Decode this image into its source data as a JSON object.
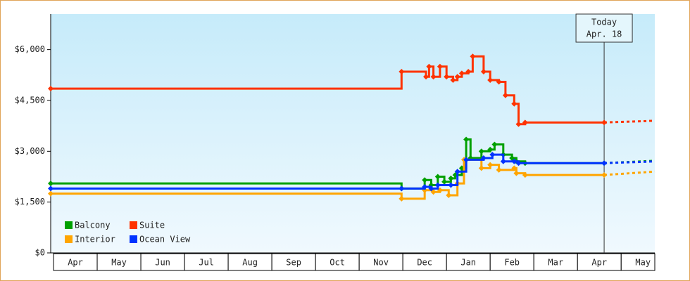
{
  "chart_data": {
    "type": "step-line",
    "ylim": [
      0,
      7050
    ],
    "yticks": [
      {
        "value": 0,
        "label": "$0"
      },
      {
        "value": 1500,
        "label": "$1,500"
      },
      {
        "value": 3000,
        "label": "$3,000"
      },
      {
        "value": 4500,
        "label": "$4,500"
      },
      {
        "value": 6000,
        "label": "$6,000"
      }
    ],
    "xlim": [
      -0.065,
      13.77
    ],
    "xticks": [
      {
        "value": 0.5,
        "label": "Apr"
      },
      {
        "value": 1.5,
        "label": "May"
      },
      {
        "value": 2.5,
        "label": "Jun"
      },
      {
        "value": 3.5,
        "label": "Jul"
      },
      {
        "value": 4.5,
        "label": "Aug"
      },
      {
        "value": 5.5,
        "label": "Sep"
      },
      {
        "value": 6.5,
        "label": "Oct"
      },
      {
        "value": 7.5,
        "label": "Nov"
      },
      {
        "value": 8.5,
        "label": "Dec"
      },
      {
        "value": 9.5,
        "label": "Jan"
      },
      {
        "value": 10.5,
        "label": "Feb"
      },
      {
        "value": 11.5,
        "label": "Mar"
      },
      {
        "value": 12.5,
        "label": "Apr"
      },
      {
        "value": 13.5,
        "label": "May"
      }
    ],
    "today": {
      "x": 12.61,
      "label": [
        "Today",
        "Apr. 18"
      ]
    },
    "forecast_x": [
      12.61,
      13.77
    ],
    "legend": "bottom-left",
    "series": [
      {
        "name": "Balcony",
        "color": "#00a000",
        "x": [
          -0.065,
          7.97,
          8.5,
          8.65,
          8.8,
          8.95,
          9.1,
          9.2,
          9.35,
          9.45,
          9.55,
          9.8,
          10.0,
          10.1,
          10.3,
          10.5,
          10.6,
          10.8,
          12.61
        ],
        "values": [
          2050,
          1900,
          2150,
          2000,
          2250,
          2100,
          2200,
          2300,
          2500,
          3350,
          2800,
          3000,
          3050,
          3200,
          2900,
          2800,
          2700,
          2650,
          2650
        ],
        "forecast": [
          2650,
          2720
        ]
      },
      {
        "name": "Suite",
        "color": "#ff3300",
        "x": [
          -0.065,
          7.97,
          8.53,
          8.6,
          8.7,
          8.85,
          9.0,
          9.15,
          9.25,
          9.35,
          9.5,
          9.6,
          9.85,
          10.0,
          10.2,
          10.35,
          10.55,
          10.65,
          10.8,
          12.61
        ],
        "values": [
          4850,
          5350,
          5200,
          5500,
          5200,
          5500,
          5200,
          5100,
          5200,
          5300,
          5350,
          5800,
          5350,
          5100,
          5050,
          4650,
          4400,
          3800,
          3850,
          3850
        ],
        "forecast": [
          3850,
          3900
        ]
      },
      {
        "name": "Interior",
        "color": "#ffa500",
        "x": [
          -0.065,
          7.97,
          8.5,
          8.7,
          8.85,
          9.05,
          9.25,
          9.4,
          9.8,
          10.0,
          10.2,
          10.55,
          10.6,
          10.8,
          12.61
        ],
        "values": [
          1750,
          1600,
          1850,
          1800,
          1850,
          1700,
          2050,
          2750,
          2500,
          2600,
          2450,
          2500,
          2350,
          2300,
          2300
        ],
        "forecast": [
          2300,
          2400
        ]
      },
      {
        "name": "Ocean View",
        "color": "#0033ff",
        "x": [
          -0.065,
          7.97,
          8.5,
          8.65,
          8.8,
          9.1,
          9.25,
          9.45,
          9.85,
          10.05,
          10.3,
          10.55,
          10.65,
          12.61
        ],
        "values": [
          1900,
          1900,
          1950,
          1900,
          2000,
          2000,
          2400,
          2750,
          2800,
          2900,
          2700,
          2700,
          2650,
          2650
        ],
        "forecast": [
          2650,
          2700
        ]
      }
    ]
  }
}
